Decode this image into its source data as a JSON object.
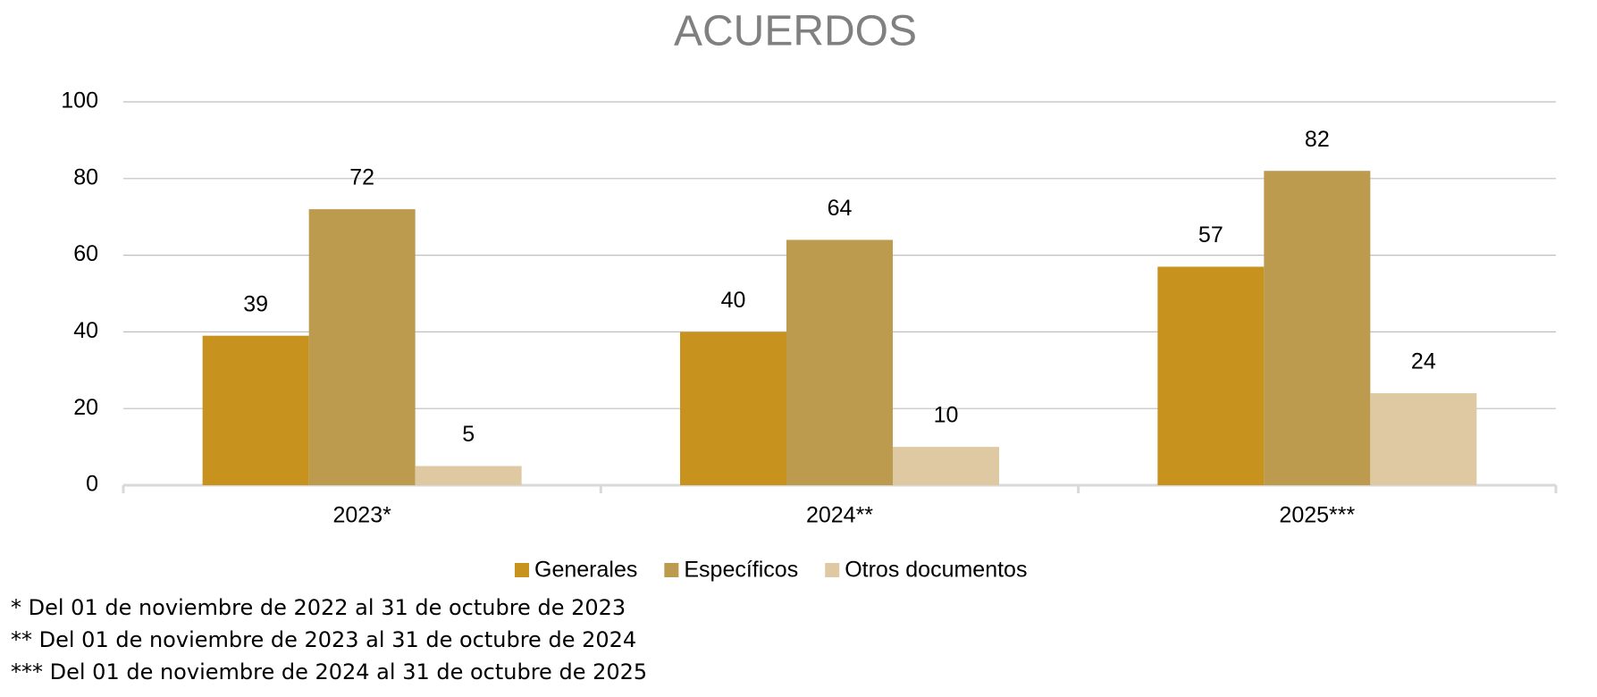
{
  "chart_data": {
    "type": "bar",
    "title": "ACUERDOS",
    "categories": [
      "2023*",
      "2024**",
      "2025***"
    ],
    "series": [
      {
        "name": "Generales",
        "color": "#c8921f",
        "values": [
          39,
          40,
          57
        ]
      },
      {
        "name": "Específicos",
        "color": "#bc9a4e",
        "values": [
          72,
          64,
          82
        ]
      },
      {
        "name": "Otros documentos",
        "color": "#dfc9a3",
        "values": [
          5,
          10,
          24
        ]
      }
    ],
    "ylim": [
      0,
      100
    ],
    "yticks": [
      0,
      20,
      40,
      60,
      80,
      100
    ],
    "grid": true,
    "legend": "bottom",
    "notes": [
      "* Del 01 de noviembre de 2022 al 31 de octubre de 2023",
      "** Del 01 de noviembre de 2023 al 31 de octubre de 2024",
      "*** Del 01 de noviembre de 2024 al 31 de octubre de 2025"
    ]
  }
}
